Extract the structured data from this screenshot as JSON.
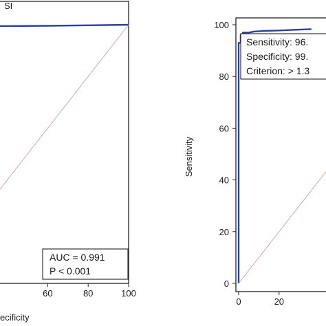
{
  "chart_data": [
    {
      "type": "line",
      "title": "SI",
      "xlabel": "ecificity",
      "ylabel": "",
      "xlim": [
        0,
        100
      ],
      "ylim": [
        0,
        100
      ],
      "x_ticks": [
        "60",
        "80",
        "100"
      ],
      "y_ticks": [],
      "series": [
        {
          "name": "",
          "color": "#2b3f9e",
          "x": [
            0,
            5,
            20,
            40,
            60,
            80,
            100
          ],
          "y": [
            99.3,
            99.3,
            99.4,
            99.5,
            99.6,
            99.8,
            100
          ]
        },
        {
          "name": "",
          "color": "#d9a6a6",
          "style": "reference",
          "x": [
            0,
            100
          ],
          "y": [
            0,
            100
          ]
        }
      ],
      "annotation": {
        "lines": [
          "AUC = 0.991",
          "P < 0.001"
        ]
      },
      "grid": false
    },
    {
      "type": "line",
      "title": "",
      "xlabel": "",
      "ylabel": "Sensitivity",
      "xlim": [
        0,
        100
      ],
      "ylim": [
        0,
        100
      ],
      "x_ticks": [
        "0",
        "20"
      ],
      "y_ticks": [
        "0",
        "20",
        "40",
        "60",
        "80",
        "100"
      ],
      "series": [
        {
          "name": "",
          "color": "#2b3f9e",
          "x": [
            0,
            0,
            1,
            1,
            2,
            2,
            5,
            8,
            12,
            20,
            30,
            36
          ],
          "y": [
            0,
            93,
            93,
            96,
            96,
            97,
            97,
            97.4,
            97.6,
            97.8,
            98.1,
            98.3
          ]
        },
        {
          "name": "",
          "color": "#d9a6a6",
          "style": "reference",
          "x": [
            0,
            100
          ],
          "y": [
            0,
            100
          ]
        }
      ],
      "annotation": {
        "lines": [
          "Sensitivity: 96.",
          "Specificity: 99.",
          "Criterion: > 1.3"
        ]
      },
      "grid": false
    }
  ]
}
